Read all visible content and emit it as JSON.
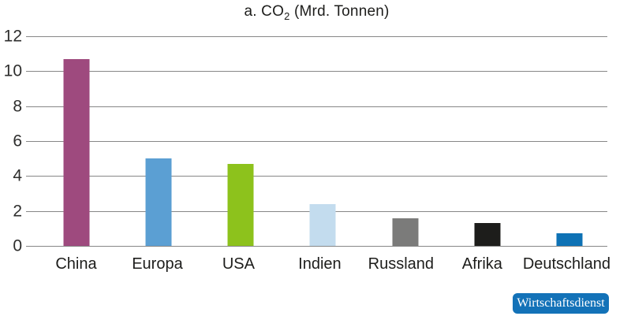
{
  "title": {
    "prefix": "a. CO",
    "subscript": "2",
    "suffix": " (Mrd. Tonnen)"
  },
  "badge": {
    "label": "Wirtschaftsdienst",
    "bg": "#1372b8",
    "text_color": "#ffffff"
  },
  "colors": {
    "background": "#ffffff",
    "grid": "#878787",
    "axis_text": "#2e2e2d",
    "label_text": "#1d1d1b"
  },
  "chart_data": {
    "type": "bar",
    "title": "a. CO2 (Mrd. Tonnen)",
    "categories": [
      "China",
      "Europa",
      "USA",
      "Indien",
      "Russland",
      "Afrika",
      "Deutschland"
    ],
    "values": [
      10.7,
      5.0,
      4.7,
      2.4,
      1.6,
      1.3,
      0.7
    ],
    "bar_colors": [
      "#9e4a7e",
      "#5b9fd3",
      "#8dc21c",
      "#c3dcee",
      "#7b7b7a",
      "#1d1d1b",
      "#0e72b5"
    ],
    "xlabel": "",
    "ylabel": "",
    "ylim": [
      0,
      12
    ],
    "yticks": [
      0,
      2,
      4,
      6,
      8,
      10,
      12
    ],
    "grid": true,
    "legend": "none"
  }
}
